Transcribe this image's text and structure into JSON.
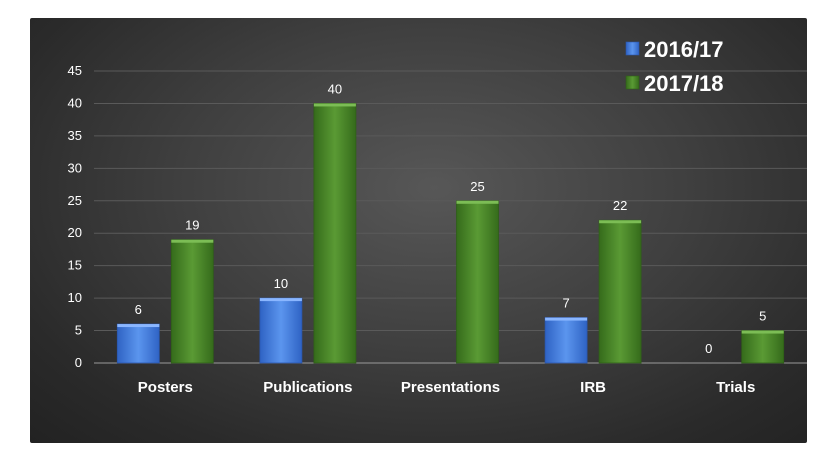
{
  "chart_data": {
    "type": "bar",
    "title": "",
    "xlabel": "",
    "ylabel": "",
    "categories": [
      "Posters",
      "Publications",
      "Presentations",
      "IRB",
      "Trials"
    ],
    "series": [
      {
        "name": "2016/17",
        "values": [
          6,
          10,
          null,
          7,
          0
        ],
        "data_labels": [
          "6",
          "10",
          "",
          "7",
          "0"
        ],
        "color": "#4a86e8"
      },
      {
        "name": "2017/18",
        "values": [
          19,
          40,
          25,
          22,
          5
        ],
        "data_labels": [
          "19",
          "40",
          "25",
          "22",
          "5"
        ],
        "color": "#4e8a2c"
      }
    ],
    "ylim": [
      0,
      45
    ],
    "yticks": [
      0,
      5,
      10,
      15,
      20,
      25,
      30,
      35,
      40,
      45
    ],
    "grid": true,
    "legend_position": "top-right",
    "background": "#3a3a3a"
  }
}
